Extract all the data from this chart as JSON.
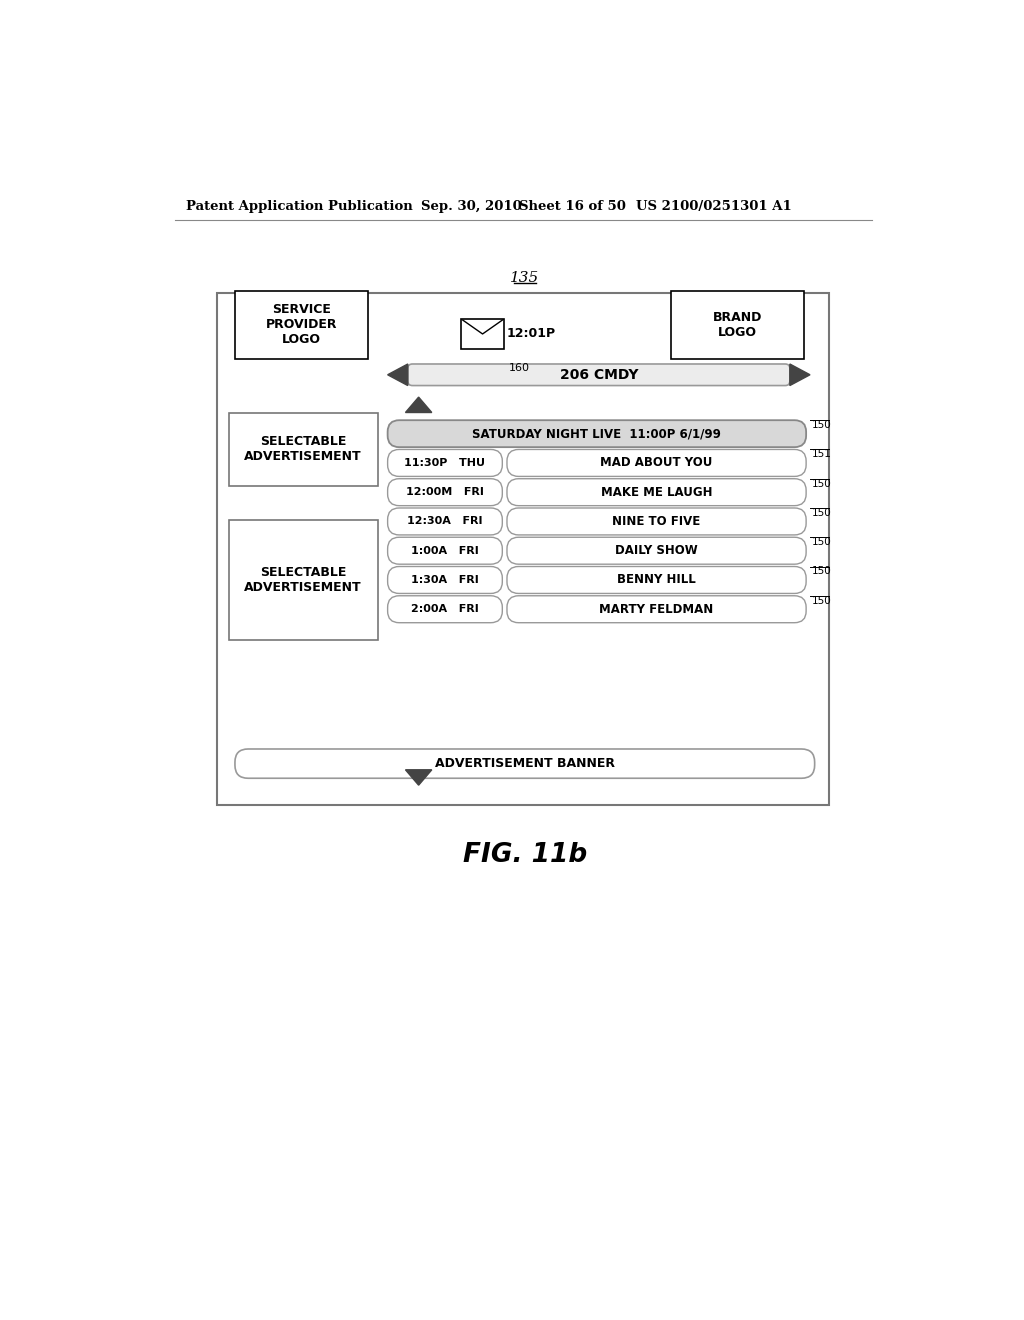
{
  "bg_color": "#ffffff",
  "header_text": "Patent Application Publication",
  "header_date": "Sep. 30, 2010",
  "header_sheet": "Sheet 16 of 50",
  "header_patent": "US 2100/0251301 A1",
  "fig_label": "FIG. 11b",
  "diagram_label": "135",
  "channel_label": "160",
  "channel_text": "206 CMDY",
  "service_logo_text": "SERVICE\nPROVIDER\nLOGO",
  "brand_logo_text": "BRAND\nLOGO",
  "time_display": "12:01P",
  "ad1_text": "SELECTABLE\nADVERTISEMENT",
  "ad2_text": "SELECTABLE\nADVERTISEMENT",
  "ad_banner_text": "ADVERTISEMENT BANNER",
  "program_rows": [
    {
      "time": "",
      "day": "",
      "title": "SATURDAY NIGHT LIVE  11:00P 6/1/99",
      "label": "150",
      "highlight": true
    },
    {
      "time": "11:30P",
      "day": "THU",
      "title": "MAD ABOUT YOU",
      "label": "151",
      "highlight": false
    },
    {
      "time": "12:00M",
      "day": "FRI",
      "title": "MAKE ME LAUGH",
      "label": "150",
      "highlight": false
    },
    {
      "time": "12:30A",
      "day": "FRI",
      "title": "NINE TO FIVE",
      "label": "150",
      "highlight": false
    },
    {
      "time": "1:00A",
      "day": "FRI",
      "title": "DAILY SHOW",
      "label": "150",
      "highlight": false
    },
    {
      "time": "1:30A",
      "day": "FRI",
      "title": "BENNY HILL",
      "label": "150",
      "highlight": false
    },
    {
      "time": "2:00A",
      "day": "FRI",
      "title": "MARTY FELDMAN",
      "label": "150",
      "highlight": false
    }
  ]
}
